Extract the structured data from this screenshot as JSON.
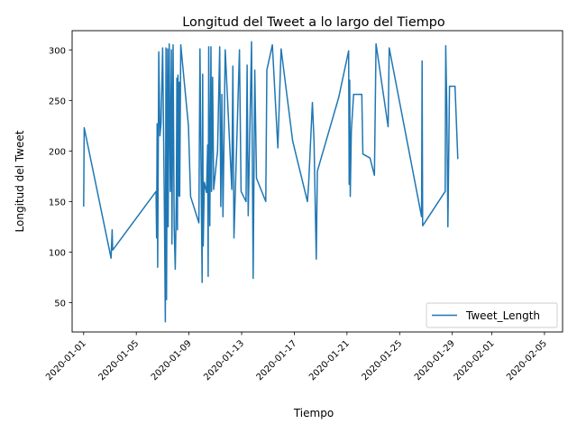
{
  "chart_data": {
    "type": "line",
    "title": "Longitud del Tweet a lo largo del Tiempo",
    "xlabel": "Tiempo",
    "ylabel": "Longitud del Tweet",
    "ylim": [
      21,
      319
    ],
    "xlim": [
      "2019-12-31T03:00",
      "2020-02-06T09:00"
    ],
    "yticks": [
      50,
      100,
      150,
      200,
      250,
      300
    ],
    "xticks": [
      "2020-01-01",
      "2020-01-05",
      "2020-01-09",
      "2020-01-13",
      "2020-01-17",
      "2020-01-21",
      "2020-01-25",
      "2020-01-29",
      "2020-02-01",
      "2020-02-05"
    ],
    "legend": "lower-right",
    "grid": false,
    "line_color": "#1f77b4",
    "series": [
      {
        "name": "Tweet_Length",
        "points": [
          [
            "2020-01-01T00:00",
            145
          ],
          [
            "2020-01-01T01:00",
            223
          ],
          [
            "2020-01-03T02:00",
            94
          ],
          [
            "2020-01-03T04:00",
            122
          ],
          [
            "2020-01-03T05:00",
            102
          ],
          [
            "2020-01-06T12:00",
            160
          ],
          [
            "2020-01-06T13:00",
            114
          ],
          [
            "2020-01-06T14:00",
            227
          ],
          [
            "2020-01-06T15:00",
            85
          ],
          [
            "2020-01-06T17:00",
            298
          ],
          [
            "2020-01-06T19:00",
            215
          ],
          [
            "2020-01-06T21:00",
            227
          ],
          [
            "2020-01-07T00:00",
            302
          ],
          [
            "2020-01-07T03:00",
            157
          ],
          [
            "2020-01-07T05:00",
            31
          ],
          [
            "2020-01-07T06:00",
            302
          ],
          [
            "2020-01-07T07:00",
            53
          ],
          [
            "2020-01-07T09:00",
            301
          ],
          [
            "2020-01-07T10:00",
            125
          ],
          [
            "2020-01-07T12:00",
            306
          ],
          [
            "2020-01-07T14:00",
            160
          ],
          [
            "2020-01-07T16:00",
            300
          ],
          [
            "2020-01-07T17:00",
            108
          ],
          [
            "2020-01-07T19:00",
            305
          ],
          [
            "2020-01-07T21:00",
            125
          ],
          [
            "2020-01-07T23:00",
            83
          ],
          [
            "2020-01-08T01:00",
            155
          ],
          [
            "2020-01-08T02:00",
            272
          ],
          [
            "2020-01-08T03:00",
            122
          ],
          [
            "2020-01-08T04:00",
            275
          ],
          [
            "2020-01-08T05:00",
            156
          ],
          [
            "2020-01-08T06:00",
            268
          ],
          [
            "2020-01-08T07:00",
            155
          ],
          [
            "2020-01-08T09:00",
            305
          ],
          [
            "2020-01-08T23:00",
            225
          ],
          [
            "2020-01-09T03:00",
            155
          ],
          [
            "2020-01-09T18:00",
            129
          ],
          [
            "2020-01-09T20:00",
            301
          ],
          [
            "2020-01-10T00:00",
            70
          ],
          [
            "2020-01-10T01:00",
            276
          ],
          [
            "2020-01-10T02:00",
            106
          ],
          [
            "2020-01-10T04:00",
            169
          ],
          [
            "2020-01-10T08:00",
            159
          ],
          [
            "2020-01-10T10:00",
            206
          ],
          [
            "2020-01-10T11:00",
            76
          ],
          [
            "2020-01-10T12:00",
            303
          ],
          [
            "2020-01-10T14:00",
            126
          ],
          [
            "2020-01-10T16:00",
            303
          ],
          [
            "2020-01-10T17:00",
            160
          ],
          [
            "2020-01-10T19:00",
            273
          ],
          [
            "2020-01-10T21:00",
            162
          ],
          [
            "2020-01-11T04:00",
            200
          ],
          [
            "2020-01-11T08:00",
            303
          ],
          [
            "2020-01-11T10:00",
            145
          ],
          [
            "2020-01-11T12:00",
            256
          ],
          [
            "2020-01-11T14:00",
            135
          ],
          [
            "2020-01-11T18:00",
            300
          ],
          [
            "2020-01-12T06:00",
            162
          ],
          [
            "2020-01-12T08:00",
            284
          ],
          [
            "2020-01-12T10:00",
            114
          ],
          [
            "2020-01-12T20:00",
            300
          ],
          [
            "2020-01-12T23:00",
            160
          ],
          [
            "2020-01-13T08:00",
            150
          ],
          [
            "2020-01-13T10:00",
            285
          ],
          [
            "2020-01-13T12:00",
            136
          ],
          [
            "2020-01-13T18:00",
            308
          ],
          [
            "2020-01-13T21:00",
            74
          ],
          [
            "2020-01-14T00:00",
            280
          ],
          [
            "2020-01-14T03:00",
            173
          ],
          [
            "2020-01-14T20:00",
            150
          ],
          [
            "2020-01-14T22:00",
            280
          ],
          [
            "2020-01-15T08:00",
            305
          ],
          [
            "2020-01-15T18:00",
            203
          ],
          [
            "2020-01-16T00:00",
            301
          ],
          [
            "2020-01-16T21:00",
            210
          ],
          [
            "2020-01-18T00:00",
            150
          ],
          [
            "2020-01-18T02:00",
            167
          ],
          [
            "2020-01-18T09:00",
            248
          ],
          [
            "2020-01-18T12:00",
            210
          ],
          [
            "2020-01-18T16:00",
            93
          ],
          [
            "2020-01-18T18:00",
            180
          ],
          [
            "2020-01-20T09:00",
            253
          ],
          [
            "2020-01-21T03:00",
            299
          ],
          [
            "2020-01-21T04:00",
            167
          ],
          [
            "2020-01-21T05:00",
            270
          ],
          [
            "2020-01-21T06:00",
            155
          ],
          [
            "2020-01-21T08:00",
            220
          ],
          [
            "2020-01-21T12:00",
            256
          ],
          [
            "2020-01-22T03:00",
            256
          ],
          [
            "2020-01-22T05:00",
            197
          ],
          [
            "2020-01-22T18:00",
            193
          ],
          [
            "2020-01-23T02:00",
            176
          ],
          [
            "2020-01-23T05:00",
            306
          ],
          [
            "2020-01-24T03:00",
            224
          ],
          [
            "2020-01-24T05:00",
            302
          ],
          [
            "2020-01-26T16:00",
            135
          ],
          [
            "2020-01-26T17:00",
            289
          ],
          [
            "2020-01-26T18:00",
            126
          ],
          [
            "2020-01-28T11:00",
            160
          ],
          [
            "2020-01-28T12:00",
            304
          ],
          [
            "2020-01-28T14:00",
            243
          ],
          [
            "2020-01-28T16:00",
            125
          ],
          [
            "2020-01-28T19:00",
            264
          ],
          [
            "2020-01-29T05:00",
            264
          ],
          [
            "2020-01-29T10:00",
            192
          ]
        ]
      }
    ]
  }
}
